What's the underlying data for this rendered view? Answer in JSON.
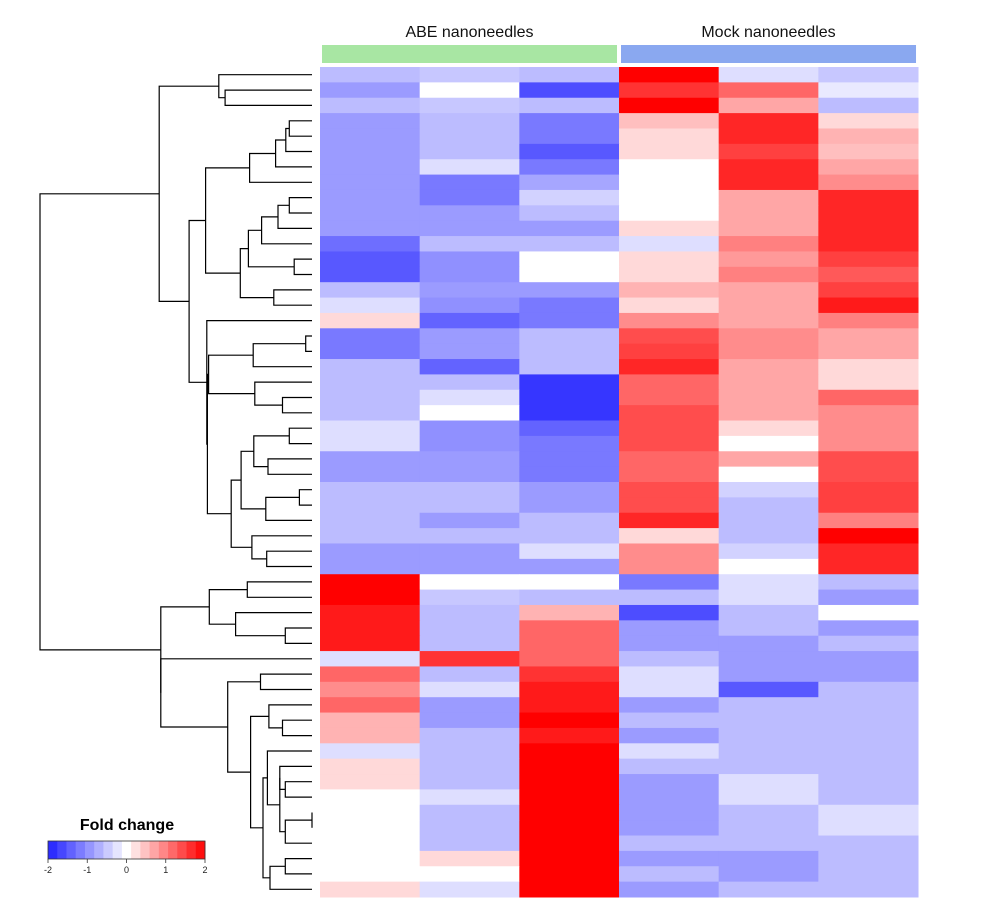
{
  "chart_data": {
    "type": "heatmap",
    "groups": [
      {
        "label": "ABE nanoneedles",
        "color": "#a8e6a3",
        "columns": 3
      },
      {
        "label": "Mock nanoneedles",
        "color": "#8aa8f0",
        "columns": 3
      }
    ],
    "legend": {
      "title": "Fold change",
      "range": [
        -2,
        2
      ],
      "tick_values": [
        -2,
        -1,
        0,
        1,
        2
      ],
      "tick_labels": [
        "-2",
        "-1",
        "0",
        "1",
        "2"
      ],
      "low_color": "#2020ff",
      "mid_color": "#ffffff",
      "high_color": "#ff0000",
      "placement": "bottom-left"
    },
    "row_dendrogram": true,
    "values": [
      [
        -0.6,
        -0.5,
        -0.6,
        2.0,
        -0.3,
        -0.5
      ],
      [
        -0.9,
        0.0,
        -1.6,
        1.6,
        1.2,
        -0.2
      ],
      [
        -0.6,
        -0.5,
        -0.6,
        2.0,
        0.7,
        -0.6
      ],
      [
        -0.9,
        -0.6,
        -1.2,
        0.5,
        1.7,
        0.3
      ],
      [
        -0.9,
        -0.6,
        -1.2,
        0.3,
        1.7,
        0.6
      ],
      [
        -0.9,
        -0.6,
        -1.5,
        0.3,
        1.5,
        0.5
      ],
      [
        -0.9,
        -0.3,
        -1.2,
        0.0,
        1.7,
        0.7
      ],
      [
        -0.9,
        -1.2,
        -0.8,
        0.0,
        1.7,
        0.9
      ],
      [
        -0.9,
        -1.2,
        -0.4,
        0.0,
        0.7,
        1.7
      ],
      [
        -0.9,
        -0.9,
        -0.6,
        0.0,
        0.7,
        1.7
      ],
      [
        -0.9,
        -0.9,
        -0.9,
        0.3,
        0.7,
        1.7
      ],
      [
        -1.3,
        -0.6,
        -0.6,
        -0.3,
        1.0,
        1.7
      ],
      [
        -1.5,
        -1.0,
        0.0,
        0.3,
        0.8,
        1.5
      ],
      [
        -1.5,
        -1.0,
        0.0,
        0.3,
        1.0,
        1.3
      ],
      [
        -0.6,
        -0.9,
        -0.9,
        0.6,
        0.7,
        1.5
      ],
      [
        -0.3,
        -1.0,
        -1.2,
        0.3,
        0.7,
        1.8
      ],
      [
        0.3,
        -1.4,
        -1.2,
        0.9,
        0.7,
        1.0
      ],
      [
        -1.2,
        -0.9,
        -0.6,
        1.4,
        0.9,
        0.7
      ],
      [
        -1.2,
        -0.9,
        -0.6,
        1.5,
        0.9,
        0.7
      ],
      [
        -0.6,
        -1.4,
        -0.6,
        1.7,
        0.7,
        0.3
      ],
      [
        -0.6,
        -0.6,
        -1.8,
        1.2,
        0.7,
        0.3
      ],
      [
        -0.6,
        -0.3,
        -1.8,
        1.2,
        0.7,
        1.2
      ],
      [
        -0.6,
        0.0,
        -1.8,
        1.4,
        0.7,
        0.9
      ],
      [
        -0.3,
        -1.0,
        -1.4,
        1.4,
        0.3,
        0.9
      ],
      [
        -0.3,
        -1.0,
        -1.2,
        1.4,
        0.0,
        0.9
      ],
      [
        -0.9,
        -0.9,
        -1.2,
        1.2,
        0.7,
        1.4
      ],
      [
        -0.9,
        -0.9,
        -1.2,
        1.2,
        0.0,
        1.4
      ],
      [
        -0.6,
        -0.6,
        -0.9,
        1.4,
        -0.4,
        1.5
      ],
      [
        -0.6,
        -0.6,
        -0.9,
        1.4,
        -0.6,
        1.5
      ],
      [
        -0.6,
        -0.9,
        -0.6,
        1.7,
        -0.6,
        1.0
      ],
      [
        -0.6,
        -0.6,
        -0.6,
        0.3,
        -0.6,
        2.0
      ],
      [
        -0.9,
        -0.9,
        -0.3,
        0.9,
        -0.4,
        1.7
      ],
      [
        -0.9,
        -0.9,
        -0.9,
        0.9,
        0.0,
        1.7
      ],
      [
        2.0,
        0.0,
        0.0,
        -1.2,
        -0.3,
        -0.6
      ],
      [
        2.0,
        -0.5,
        -0.6,
        -0.6,
        -0.3,
        -0.9
      ],
      [
        1.8,
        -0.6,
        0.6,
        -1.6,
        -0.6,
        0.0
      ],
      [
        1.8,
        -0.6,
        1.2,
        -0.9,
        -0.6,
        -0.9
      ],
      [
        1.8,
        -0.6,
        1.2,
        -0.9,
        -0.9,
        -0.6
      ],
      [
        -0.3,
        1.6,
        1.2,
        -0.6,
        -0.9,
        -0.9
      ],
      [
        1.2,
        -0.6,
        1.6,
        -0.3,
        -0.9,
        -0.9
      ],
      [
        0.9,
        -0.3,
        1.8,
        -0.3,
        -1.5,
        -0.6
      ],
      [
        1.2,
        -0.9,
        1.8,
        -0.9,
        -0.6,
        -0.6
      ],
      [
        0.6,
        -0.9,
        2.0,
        -0.6,
        -0.6,
        -0.6
      ],
      [
        0.6,
        -0.6,
        1.8,
        -0.9,
        -0.6,
        -0.6
      ],
      [
        -0.3,
        -0.6,
        2.0,
        -0.3,
        -0.6,
        -0.6
      ],
      [
        0.3,
        -0.6,
        2.0,
        -0.6,
        -0.6,
        -0.6
      ],
      [
        0.3,
        -0.6,
        2.0,
        -0.9,
        -0.3,
        -0.6
      ],
      [
        0.0,
        -0.3,
        2.0,
        -0.9,
        -0.3,
        -0.6
      ],
      [
        0.0,
        -0.6,
        2.0,
        -0.9,
        -0.6,
        -0.3
      ],
      [
        0.0,
        -0.6,
        2.0,
        -0.9,
        -0.6,
        -0.3
      ],
      [
        0.0,
        -0.6,
        2.0,
        -0.6,
        -0.6,
        -0.6
      ],
      [
        0.0,
        0.3,
        2.0,
        -0.9,
        -0.9,
        -0.6
      ],
      [
        0.0,
        0.0,
        2.0,
        -0.6,
        -0.9,
        -0.6
      ],
      [
        0.3,
        -0.3,
        2.0,
        -0.9,
        -0.6,
        -0.6
      ]
    ]
  }
}
